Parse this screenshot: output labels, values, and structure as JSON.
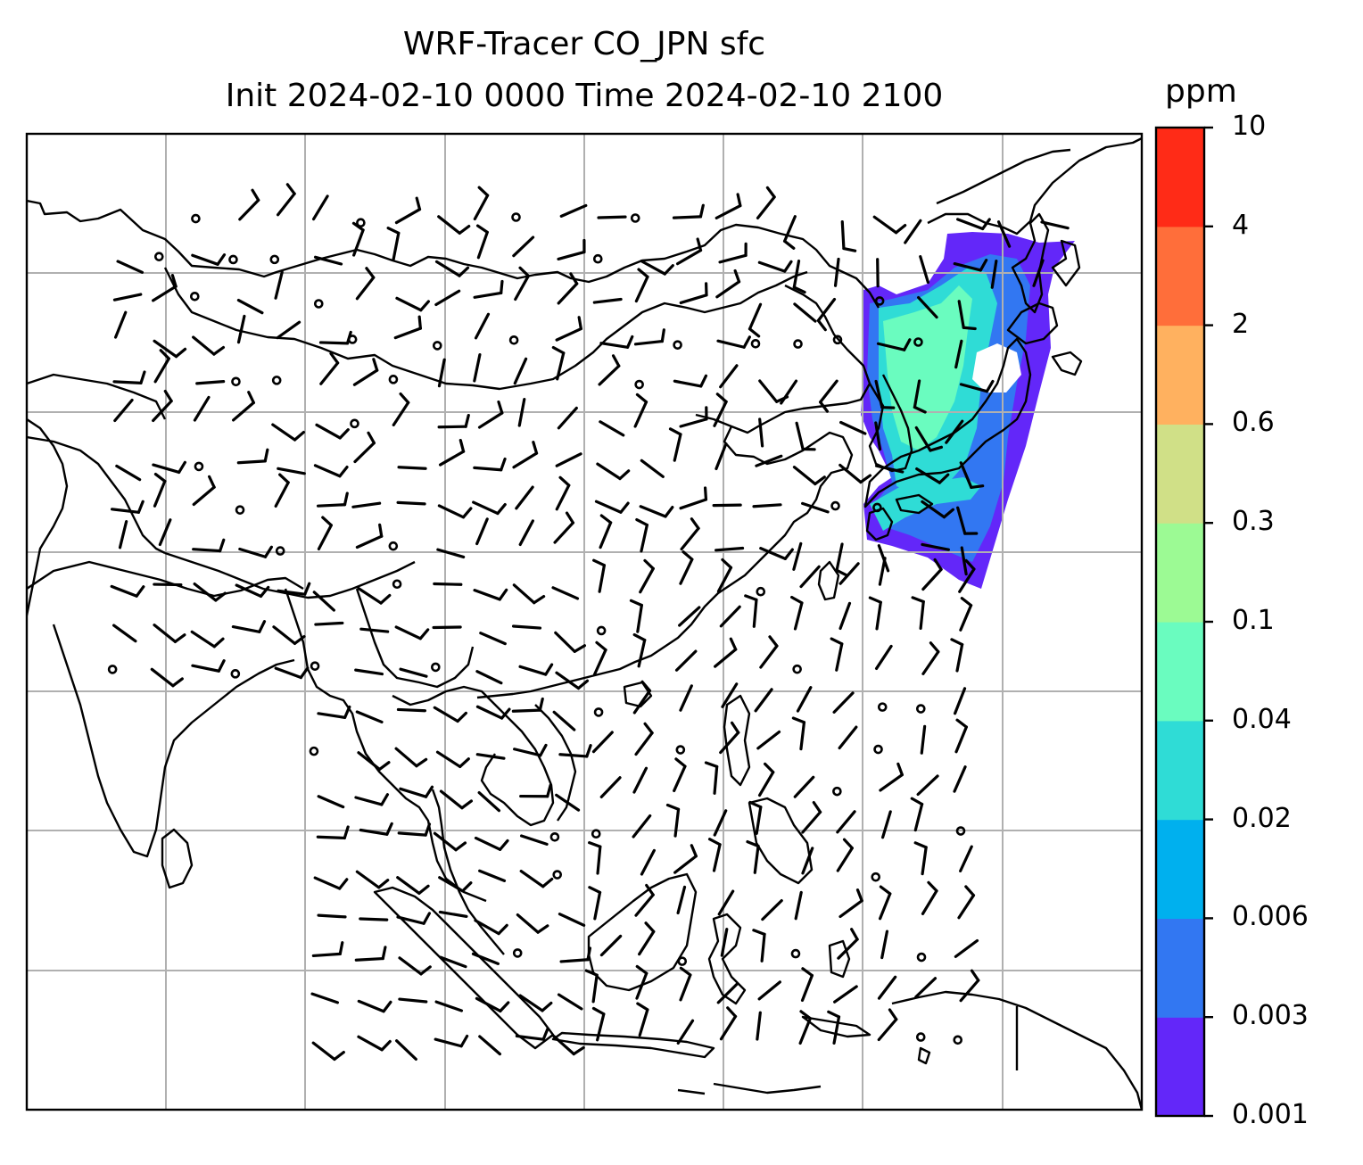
{
  "title_line1": "WRF-Tracer CO_JPN sfc",
  "title_line2": "Init 2024-02-10 0000 Time 2024-02-10 2100",
  "colorbar": {
    "unit": "ppm",
    "ticks": [
      "0.001",
      "0.003",
      "0.006",
      "0.02",
      "0.04",
      "0.1",
      "0.3",
      "0.6",
      "2",
      "4",
      "10"
    ],
    "colors": [
      "#6327f9",
      "#3277f2",
      "#00b0ee",
      "#2fdcd6",
      "#6afcbf",
      "#9cfa94",
      "#d0e087",
      "#ffb15f",
      "#ff6e3a",
      "#ff2b17"
    ]
  },
  "map": {
    "gridlines": true,
    "grid_color": "#b0b0b0",
    "plume_region": "Japan / Korea / Northeast China / Sea of Japan"
  }
}
